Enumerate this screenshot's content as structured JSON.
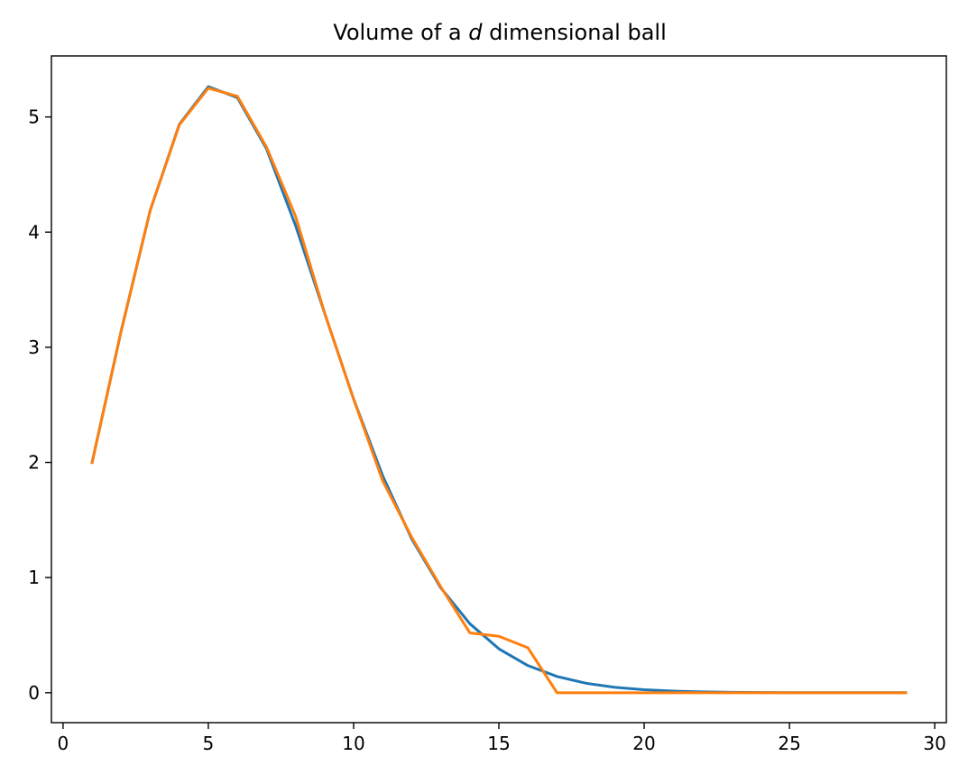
{
  "chart_data": {
    "type": "line",
    "title": {
      "prefix": "Volume of a ",
      "variable": "d",
      "suffix": " dimensional ball"
    },
    "xlabel": "",
    "ylabel": "",
    "xlim": [
      -0.4,
      30.4
    ],
    "ylim": [
      -0.26,
      5.53
    ],
    "xticks": [
      0,
      5,
      10,
      15,
      20,
      25,
      30
    ],
    "yticks": [
      0,
      1,
      2,
      3,
      4,
      5
    ],
    "grid": false,
    "legend": "none",
    "x": [
      1,
      2,
      3,
      4,
      5,
      6,
      7,
      8,
      9,
      10,
      11,
      12,
      13,
      14,
      15,
      16,
      17,
      18,
      19,
      20,
      21,
      22,
      23,
      24,
      25,
      26,
      27,
      28,
      29
    ],
    "series": [
      {
        "color": "#1f77b4",
        "values": [
          2.0,
          3.1416,
          4.1888,
          4.9348,
          5.2638,
          5.1677,
          4.7248,
          4.0587,
          3.2985,
          2.5502,
          1.8841,
          1.3353,
          0.9106,
          0.5993,
          0.3814,
          0.2353,
          0.141,
          0.0821,
          0.0466,
          0.0258,
          0.0139,
          0.0073,
          0.0038,
          0.0019,
          0.001,
          0.0005,
          0.0002,
          0.0001,
          0.0001
        ]
      },
      {
        "color": "#ff7f0e",
        "values": [
          2.0,
          3.14,
          4.19,
          4.93,
          5.25,
          5.18,
          4.74,
          4.14,
          3.3,
          2.55,
          1.84,
          1.35,
          0.92,
          0.52,
          0.49,
          0.39,
          0.0,
          0.0,
          0.0,
          0.0,
          0.0,
          0.0,
          0.0,
          0.0,
          0.0,
          0.0,
          0.0,
          0.0,
          0.0
        ]
      }
    ]
  }
}
